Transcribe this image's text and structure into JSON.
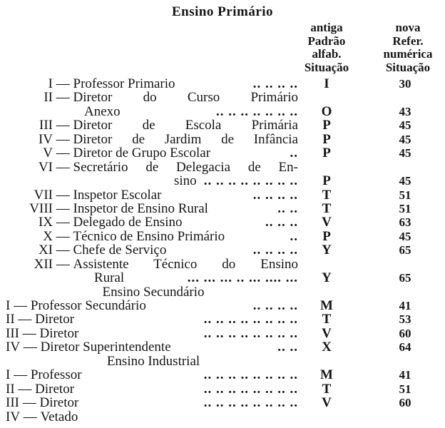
{
  "title": "Ensino Primário",
  "headers": {
    "old": [
      "antiga",
      "Padrão",
      "alfab.",
      "Situação"
    ],
    "new": [
      "nova",
      "Refer.",
      "numérica",
      "Situação"
    ]
  },
  "rows": [
    {
      "type": "item",
      "style": "primary",
      "roman": "I",
      "label": "Professor Primario",
      "dots": ".. .. .. ..",
      "code": "I",
      "value": "30"
    },
    {
      "type": "item",
      "style": "primary",
      "roman": "II",
      "label": "Diretor do Curso Primário",
      "justify": true
    },
    {
      "type": "cont",
      "indent": true,
      "label": "Anexo",
      "dots": ".. .. .. .. .. .. ..",
      "code": "O",
      "value": "43"
    },
    {
      "type": "item",
      "style": "primary",
      "roman": "III",
      "label": "Diretor de Escola Primária",
      "justify": true,
      "code": "P",
      "value": "45"
    },
    {
      "type": "item",
      "style": "primary",
      "roman": "IV",
      "label": "Diretor de Jardim de Infância",
      "justify": true,
      "code": "P",
      "value": "45"
    },
    {
      "type": "item",
      "style": "primary",
      "roman": "V",
      "label": "Diretor de Grupo Escolar",
      "dots": "..",
      "code": "P",
      "value": "45"
    },
    {
      "type": "item",
      "style": "primary",
      "roman": "VI",
      "label": "Secretário de Delegacia de En-",
      "justify": true
    },
    {
      "type": "cont",
      "indent": true,
      "label": "sino",
      "dots": ".. .. .. .. .. .. .. ..",
      "code": "P",
      "value": "45"
    },
    {
      "type": "item",
      "style": "primary",
      "roman": "VII",
      "label": "Inspetor Escolar",
      "dots": ".. .. .. ..",
      "code": "T",
      "value": "51"
    },
    {
      "type": "item",
      "style": "primary",
      "roman": "VIII",
      "label": "Inspetor de Ensino Rural",
      "dots": ".. ..",
      "code": "T",
      "value": "51"
    },
    {
      "type": "item",
      "style": "primary",
      "roman": "IX",
      "label": "Delegado de Ensino",
      "dots": ".. .. ..",
      "code": "V",
      "value": "63"
    },
    {
      "type": "item",
      "style": "primary",
      "roman": "X",
      "label": "Técnico de Ensino Primário",
      "dots": "..",
      "code": "P",
      "value": "45"
    },
    {
      "type": "item",
      "style": "primary",
      "roman": "XI",
      "label": "Chefe de Serviço",
      "dots": ".. .. .. ..",
      "code": "Y",
      "value": "65"
    },
    {
      "type": "item",
      "style": "primary",
      "roman": "XII",
      "label": "Assistente Técnico do Ensino",
      "justify": true
    },
    {
      "type": "cont",
      "indent": true,
      "label": "Rural",
      "dots": "... ... ... .. ... .... ...",
      "code": "Y",
      "value": "65"
    },
    {
      "type": "section",
      "label": "Ensino Secundário"
    },
    {
      "type": "item",
      "style": "flat",
      "roman": "I",
      "label": "Professor Secundário",
      "dots": ".. .. .. ..",
      "code": "M",
      "value": "41"
    },
    {
      "type": "item",
      "style": "flat",
      "roman": "II",
      "label": "Diretor",
      "dots": ".. .. .. .. .. .. .. ..",
      "code": "T",
      "value": "53"
    },
    {
      "type": "item",
      "style": "flat",
      "roman": "III",
      "label": "Diretor",
      "dots": ".. .. .. .. .. .. .. ..",
      "code": "V",
      "value": "60"
    },
    {
      "type": "item",
      "style": "flat",
      "roman": "IV",
      "label": "Diretor Superintendente",
      "dots": ".. ..",
      "code": "X",
      "value": "64"
    },
    {
      "type": "section",
      "label": "Ensino Industrial"
    },
    {
      "type": "item",
      "style": "flat",
      "roman": "I",
      "label": "Professor",
      "dots": ".. .. .. .. .. .. .. ..",
      "code": "M",
      "value": "41"
    },
    {
      "type": "item",
      "style": "flat",
      "roman": "II",
      "label": "Diretor",
      "dots": ".. .. .. .. .. .. .. ..",
      "code": "T",
      "value": "51"
    },
    {
      "type": "item",
      "style": "flat",
      "roman": "III",
      "label": "Diretor",
      "dots": ".. .. .. .. .. .. .. ..",
      "code": "V",
      "value": "60"
    },
    {
      "type": "item",
      "style": "flat",
      "roman": "IV",
      "label": "Vetado"
    }
  ]
}
